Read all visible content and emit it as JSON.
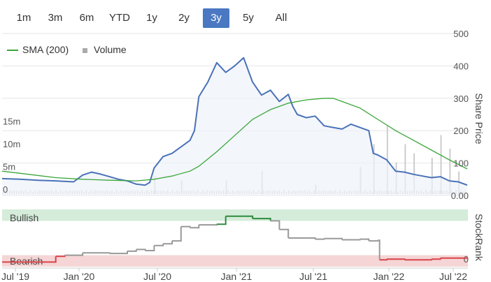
{
  "range_selector": {
    "buttons": [
      "1m",
      "3m",
      "6m",
      "YTD",
      "1y",
      "2y",
      "3y",
      "5y",
      "All"
    ],
    "active": "3y"
  },
  "legend": {
    "sma_label": "SMA (200)",
    "volume_label": "Volume"
  },
  "colors": {
    "price": "#4a72b8",
    "price_fill": "#eef2f9",
    "sma": "#3aa63a",
    "volume": "#c8c8c8",
    "bullish_band": "#d4ecd9",
    "bearish_band": "#f5d5d5",
    "rank_bull": "#2e8b3d",
    "rank_neutral": "#999999",
    "rank_bear": "#d9434a",
    "active_button": "#4a78c2"
  },
  "chart_data": [
    {
      "type": "line",
      "title": "",
      "ylabel": "Share Price",
      "ylim": [
        0,
        500
      ],
      "yticks": [
        "0.00",
        "100",
        "200",
        "300",
        "400",
        "500"
      ],
      "volume_ticks": [
        "0",
        "5m",
        "10m",
        "15m"
      ],
      "volume_ylim": [
        0,
        20
      ],
      "x_labels": [
        "Jul '19",
        "Jan '20",
        "Jul '20",
        "Jan '21",
        "Jul '21",
        "Jan '22",
        "Jul '22"
      ],
      "series": [
        {
          "name": "Price",
          "points": [
            [
              0,
              52
            ],
            [
              2,
              50
            ],
            [
              4,
              47
            ],
            [
              6,
              45
            ],
            [
              8,
              42
            ],
            [
              9,
              63
            ],
            [
              10,
              72
            ],
            [
              11,
              66
            ],
            [
              12,
              58
            ],
            [
              13,
              50
            ],
            [
              14,
              45
            ],
            [
              15,
              35
            ],
            [
              16,
              32
            ],
            [
              16.5,
              40
            ],
            [
              17,
              85
            ],
            [
              18,
              120
            ],
            [
              19,
              130
            ],
            [
              20,
              150
            ],
            [
              21,
              170
            ],
            [
              21.5,
              200
            ],
            [
              22,
              305
            ],
            [
              23,
              350
            ],
            [
              24,
              410
            ],
            [
              25,
              380
            ],
            [
              26,
              400
            ],
            [
              27,
              425
            ],
            [
              28,
              350
            ],
            [
              29,
              310
            ],
            [
              30,
              325
            ],
            [
              31,
              290
            ],
            [
              32,
              312
            ],
            [
              32.5,
              275
            ],
            [
              33,
              250
            ],
            [
              34,
              240
            ],
            [
              35,
              245
            ],
            [
              36,
              215
            ],
            [
              37,
              210
            ],
            [
              38,
              205
            ],
            [
              39,
              220
            ],
            [
              40,
              210
            ],
            [
              41,
              200
            ],
            [
              41.5,
              130
            ],
            [
              42,
              125
            ],
            [
              43,
              110
            ],
            [
              44,
              75
            ],
            [
              45,
              72
            ],
            [
              46,
              65
            ],
            [
              47,
              60
            ],
            [
              48,
              55
            ],
            [
              49,
              58
            ],
            [
              50,
              45
            ],
            [
              51,
              42
            ],
            [
              52,
              32
            ]
          ]
        },
        {
          "name": "SMA (200)",
          "points": [
            [
              0,
              75
            ],
            [
              3,
              65
            ],
            [
              6,
              55
            ],
            [
              9,
              50
            ],
            [
              12,
              47
            ],
            [
              15,
              45
            ],
            [
              17,
              50
            ],
            [
              19,
              60
            ],
            [
              21,
              75
            ],
            [
              22,
              90
            ],
            [
              24,
              135
            ],
            [
              26,
              185
            ],
            [
              28,
              235
            ],
            [
              30,
              265
            ],
            [
              32,
              285
            ],
            [
              34,
              295
            ],
            [
              36,
              300
            ],
            [
              37,
              300
            ],
            [
              38,
              290
            ],
            [
              40,
              270
            ],
            [
              42,
              235
            ],
            [
              44,
              200
            ],
            [
              46,
              170
            ],
            [
              48,
              140
            ],
            [
              50,
              110
            ],
            [
              52,
              82
            ]
          ]
        },
        {
          "name": "Volume",
          "points": [
            [
              17,
              4
            ],
            [
              20,
              3
            ],
            [
              25,
              3
            ],
            [
              29,
              5
            ],
            [
              35,
              2
            ],
            [
              40,
              6
            ],
            [
              41.5,
              11
            ],
            [
              43,
              15
            ],
            [
              44,
              7
            ],
            [
              45,
              11
            ],
            [
              46,
              9
            ],
            [
              48,
              8
            ],
            [
              49,
              13
            ],
            [
              50,
              10
            ],
            [
              51,
              5
            ]
          ]
        }
      ]
    },
    {
      "type": "line",
      "title": "",
      "ylabel": "StockRank",
      "ylim": [
        0,
        100
      ],
      "yticks": [
        "0"
      ],
      "bands": [
        {
          "label": "Bullish",
          "from": 80,
          "to": 100
        },
        {
          "label": "Bearish",
          "from": 0,
          "to": 20
        }
      ],
      "x_labels": [
        "Jul '19",
        "Jan '20",
        "Jul '20",
        "Jan '21",
        "Jul '21",
        "Jan '22",
        "Jul '22"
      ],
      "series": [
        {
          "name": "StockRank",
          "points": [
            [
              0,
              8
            ],
            [
              4,
              8
            ],
            [
              6,
              18
            ],
            [
              7,
              20
            ],
            [
              9,
              24
            ],
            [
              12,
              23
            ],
            [
              14,
              27
            ],
            [
              15,
              30
            ],
            [
              16,
              28
            ],
            [
              17,
              37
            ],
            [
              18,
              40
            ],
            [
              19,
              45
            ],
            [
              20,
              70
            ],
            [
              21,
              68
            ],
            [
              22,
              73
            ],
            [
              24,
              74
            ],
            [
              25,
              88
            ],
            [
              27,
              88
            ],
            [
              28,
              84
            ],
            [
              30,
              80
            ],
            [
              31,
              65
            ],
            [
              32,
              50
            ],
            [
              34,
              50
            ],
            [
              35,
              48
            ],
            [
              36,
              49
            ],
            [
              38,
              47
            ],
            [
              40,
              48
            ],
            [
              41,
              45
            ],
            [
              42,
              46
            ],
            [
              42.2,
              12
            ],
            [
              43,
              13
            ],
            [
              45,
              12
            ],
            [
              48,
              13
            ],
            [
              49,
              15
            ],
            [
              52,
              14
            ]
          ]
        }
      ]
    }
  ]
}
